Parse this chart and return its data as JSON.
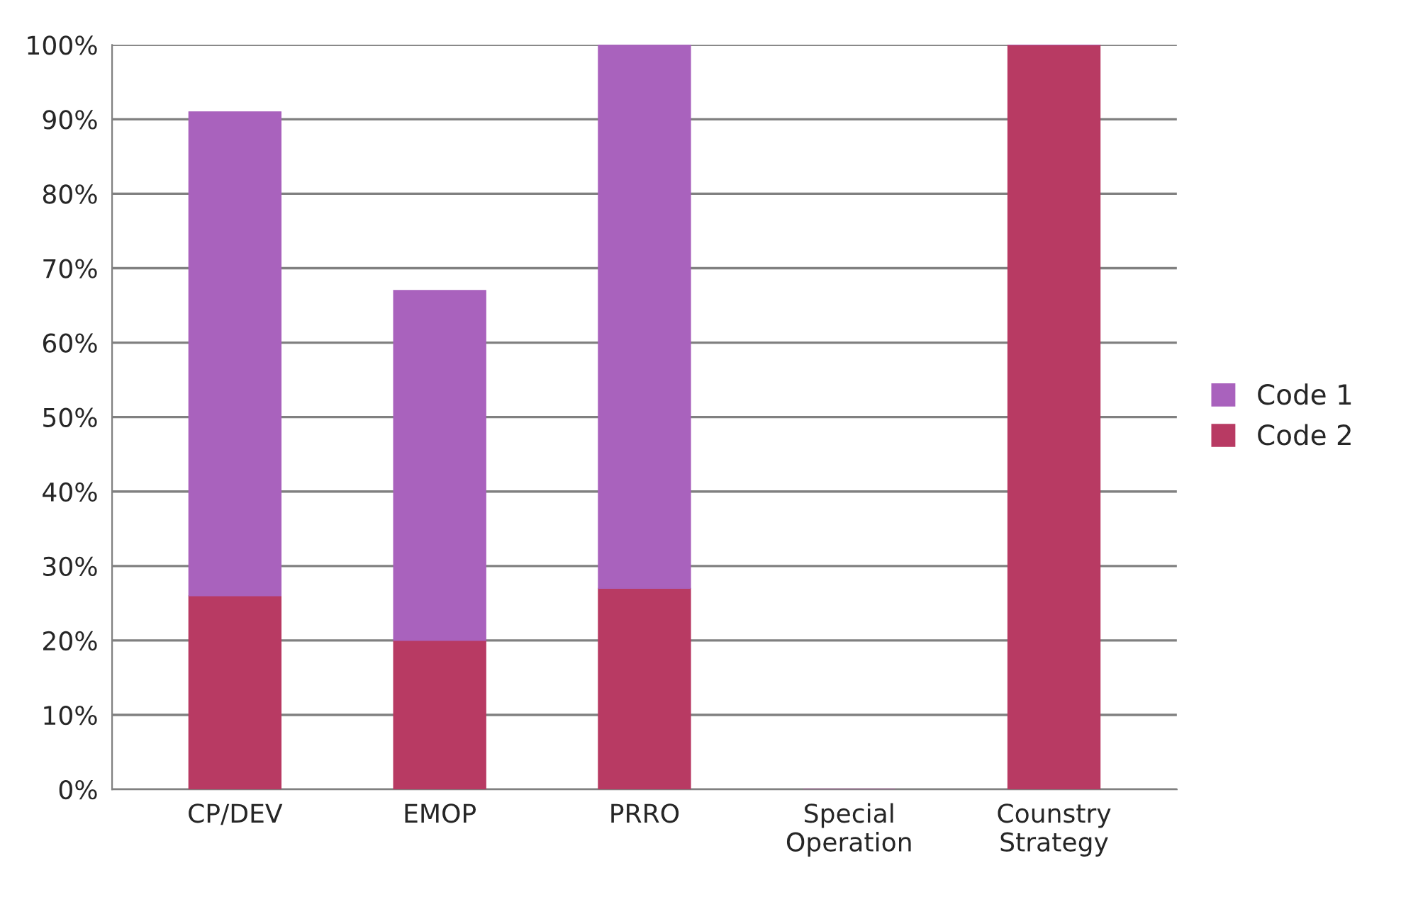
{
  "chart_data": {
    "type": "bar",
    "stacked": true,
    "categories": [
      "CP/DEV",
      "EMOP",
      "PRRO",
      "Special Operation",
      "Counstry Strategy"
    ],
    "series": [
      {
        "name": "Code 2",
        "color": "#b83a63",
        "values": [
          26,
          20,
          27,
          0,
          100
        ]
      },
      {
        "name": "Code 1",
        "color": "#a962bd",
        "values": [
          65,
          47,
          73,
          0,
          0
        ]
      }
    ],
    "ylim": [
      0,
      100
    ],
    "yticks": [
      {
        "value": 0,
        "label": "0%"
      },
      {
        "value": 10,
        "label": "10%"
      },
      {
        "value": 20,
        "label": "20%"
      },
      {
        "value": 30,
        "label": "30%"
      },
      {
        "value": 40,
        "label": "40%"
      },
      {
        "value": 50,
        "label": "50%"
      },
      {
        "value": 60,
        "label": "60%"
      },
      {
        "value": 70,
        "label": "70%"
      },
      {
        "value": 80,
        "label": "80%"
      },
      {
        "value": 90,
        "label": "90%"
      },
      {
        "value": 100,
        "label": "100%"
      }
    ],
    "grid": "y",
    "legend": "right"
  }
}
